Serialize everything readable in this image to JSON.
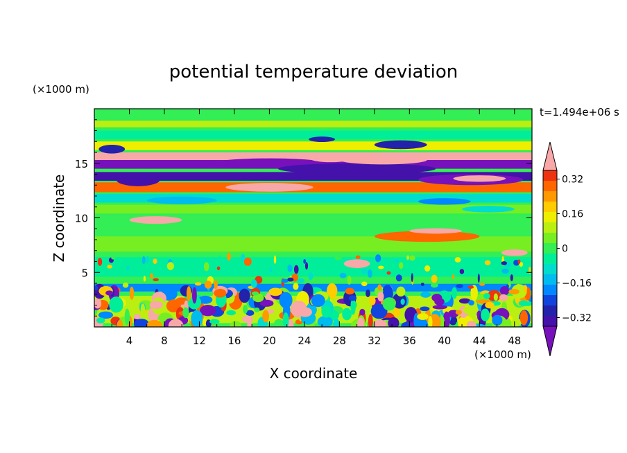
{
  "chart_data": {
    "type": "heatmap",
    "title": "potential temperature deviation",
    "time_label": "t=1.494e+06 s",
    "xlabel": "X coordinate",
    "ylabel": "Z coordinate",
    "x_unit": "(×1000 m)",
    "y_unit": "(×1000 m)",
    "xlim": [
      0,
      50
    ],
    "ylim": [
      0,
      20
    ],
    "x_ticks": [
      "4",
      "8",
      "12",
      "16",
      "20",
      "24",
      "28",
      "32",
      "36",
      "40",
      "44",
      "48"
    ],
    "y_ticks": [
      "5",
      "10",
      "15"
    ],
    "colorbar": {
      "levels": [
        -0.4,
        -0.36,
        -0.32,
        -0.28,
        -0.24,
        -0.2,
        -0.16,
        -0.12,
        -0.08,
        -0.04,
        0,
        0.04,
        0.08,
        0.12,
        0.16,
        0.2,
        0.24,
        0.28,
        0.32,
        0.36,
        0.4
      ],
      "labels": [
        "0.32",
        "0.16",
        "0",
        "−0.16",
        "−0.32"
      ],
      "label_values": [
        0.32,
        0.16,
        0,
        -0.16,
        -0.32
      ],
      "colors": [
        "#7711bb",
        "#4411aa",
        "#2222aa",
        "#1144dd",
        "#0088ff",
        "#00bbee",
        "#00ddcc",
        "#00ee99",
        "#33ee55",
        "#77ee22",
        "#bbee11",
        "#eeee00",
        "#ffcc00",
        "#ff9900",
        "#ff6600",
        "#ee3311",
        "#f8a8a8"
      ]
    },
    "bands": [
      {
        "z": 19.5,
        "dz": 1.0,
        "value": 0.02
      },
      {
        "z": 18.6,
        "dz": 0.6,
        "value": 0.08
      },
      {
        "z": 17.6,
        "dz": 0.8,
        "value": -0.05
      },
      {
        "z": 16.6,
        "dz": 0.8,
        "value": 0.15
      },
      {
        "z": 15.6,
        "dz": 0.8,
        "value": 0.4
      },
      {
        "z": 14.9,
        "dz": 0.8,
        "value": -0.4
      },
      {
        "z": 13.8,
        "dz": 0.8,
        "value": -0.32
      },
      {
        "z": 12.8,
        "dz": 0.9,
        "value": 0.3
      },
      {
        "z": 11.8,
        "dz": 0.8,
        "value": -0.1
      },
      {
        "z": 10.8,
        "dz": 0.8,
        "value": 0.04
      },
      {
        "z": 9.4,
        "dz": 1.6,
        "value": -0.02
      },
      {
        "z": 7.6,
        "dz": 1.4,
        "value": 0.05
      },
      {
        "z": 5.5,
        "dz": 1.8,
        "value": -0.06
      },
      {
        "z": 3.6,
        "dz": 0.7,
        "value": -0.2
      },
      {
        "z": 1.6,
        "dz": 2.5,
        "value": 0.1
      }
    ],
    "features": [
      {
        "x": 20,
        "z": 15.0,
        "w": 13,
        "h": 0.9,
        "value": -0.4
      },
      {
        "x": 30,
        "z": 14.5,
        "w": 18,
        "h": 1.0,
        "value": -0.34
      },
      {
        "x": 43,
        "z": 13.5,
        "w": 12,
        "h": 1.0,
        "value": -0.36
      },
      {
        "x": 5,
        "z": 13.5,
        "w": 5,
        "h": 1.2,
        "value": -0.34
      },
      {
        "x": 33,
        "z": 15.3,
        "w": 10,
        "h": 0.8,
        "value": 0.4
      },
      {
        "x": 44,
        "z": 13.6,
        "w": 6,
        "h": 0.6,
        "value": 0.4
      },
      {
        "x": 27,
        "z": 15.5,
        "w": 5,
        "h": 0.8,
        "value": 0.4
      },
      {
        "x": 20,
        "z": 12.8,
        "w": 10,
        "h": 0.8,
        "value": 0.36
      },
      {
        "x": 7,
        "z": 9.8,
        "w": 6,
        "h": 0.7,
        "value": 0.38
      },
      {
        "x": 38,
        "z": 8.3,
        "w": 12,
        "h": 1.0,
        "value": 0.3
      },
      {
        "x": 39,
        "z": 8.8,
        "w": 6,
        "h": 0.5,
        "value": 0.4
      },
      {
        "x": 35,
        "z": 16.7,
        "w": 6,
        "h": 0.8,
        "value": -0.3
      },
      {
        "x": 26,
        "z": 17.2,
        "w": 3,
        "h": 0.5,
        "value": -0.28
      },
      {
        "x": 2,
        "z": 16.3,
        "w": 3,
        "h": 0.8,
        "value": -0.3
      },
      {
        "x": 48,
        "z": 6.8,
        "w": 3,
        "h": 0.6,
        "value": 0.36
      },
      {
        "x": 30,
        "z": 5.8,
        "w": 3,
        "h": 0.8,
        "value": 0.38
      },
      {
        "x": 40,
        "z": 11.5,
        "w": 6,
        "h": 0.6,
        "value": -0.18
      },
      {
        "x": 10,
        "z": 11.6,
        "w": 8,
        "h": 0.7,
        "value": -0.16
      },
      {
        "x": 45,
        "z": 10.8,
        "w": 6,
        "h": 0.6,
        "value": -0.12
      }
    ]
  }
}
